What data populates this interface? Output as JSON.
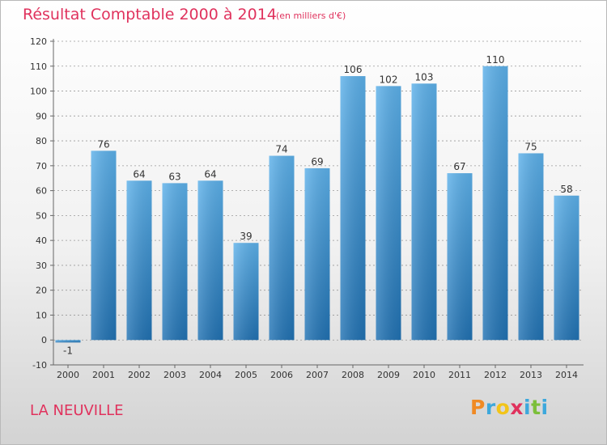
{
  "title": "Résultat Comptable 2000 à 2014",
  "unit_note": "(en milliers d'€)",
  "commune": "LA NEUVILLE",
  "logo": {
    "text": "Proxiti",
    "letters": [
      {
        "ch": "P",
        "color": "#f08a24"
      },
      {
        "ch": "r",
        "color": "#3da8dc"
      },
      {
        "ch": "o",
        "color": "#f2c419"
      },
      {
        "ch": "x",
        "color": "#e0325d"
      },
      {
        "ch": "i",
        "color": "#3da8dc"
      },
      {
        "ch": "t",
        "color": "#7cbf3a"
      },
      {
        "ch": "i",
        "color": "#3da8dc"
      }
    ]
  },
  "colors": {
    "title": "#e0325d",
    "bar_top": "#5db1ea",
    "bar_bottom": "#2172b3",
    "grid": "#999999",
    "text": "#333333"
  },
  "chart_data": {
    "type": "bar",
    "categories": [
      "2000",
      "2001",
      "2002",
      "2003",
      "2004",
      "2005",
      "2006",
      "2007",
      "2008",
      "2009",
      "2010",
      "2011",
      "2012",
      "2013",
      "2014"
    ],
    "values": [
      -1,
      76,
      64,
      63,
      64,
      39,
      74,
      69,
      106,
      102,
      103,
      67,
      110,
      75,
      58
    ],
    "ylim": [
      -10,
      120
    ],
    "yticks": [
      -10,
      0,
      10,
      20,
      30,
      40,
      50,
      60,
      70,
      80,
      90,
      100,
      110,
      120
    ],
    "grid": "horizontal dashed",
    "legend": "none"
  }
}
